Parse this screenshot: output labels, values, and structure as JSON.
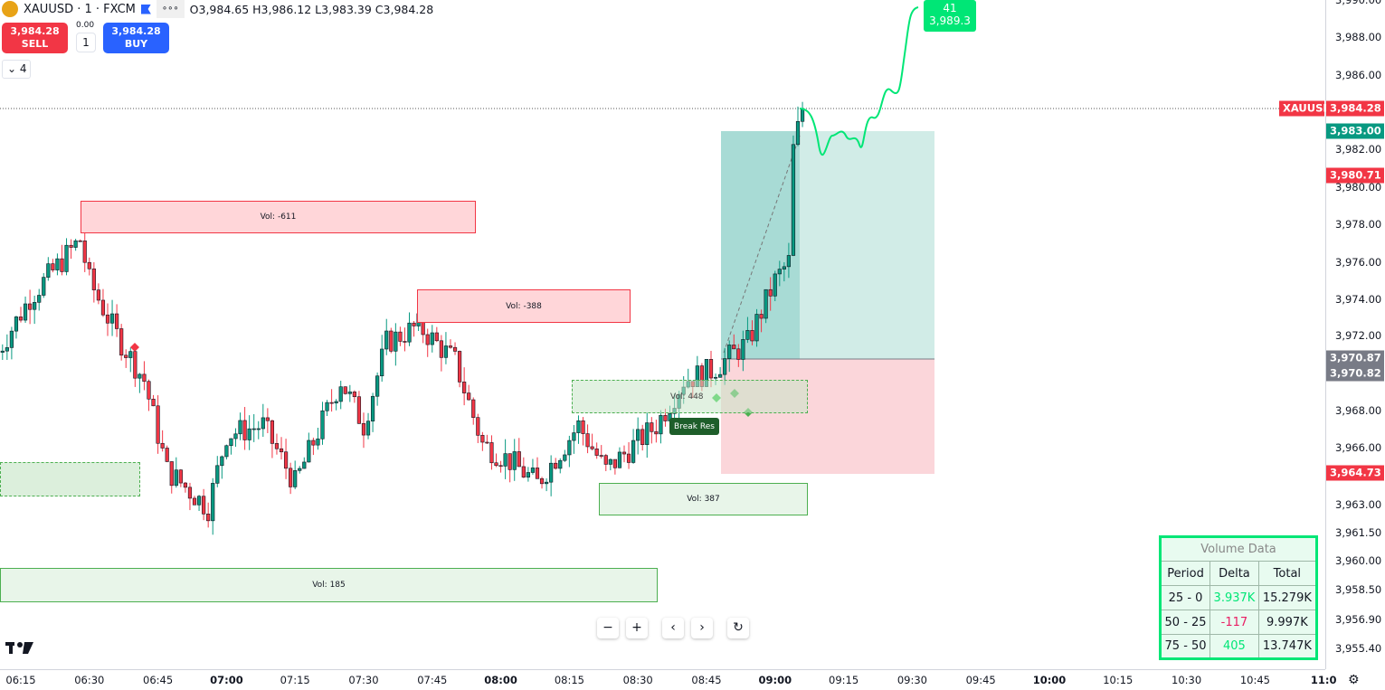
{
  "header": {
    "symbol": "XAUUSD · 1 · FXCM",
    "more": "∘∘∘",
    "ohlc": "O3,984.65  H3,986.12  L3,983.39  C3,984.28"
  },
  "trade": {
    "sell_price": "3,984.28",
    "sell_label": "SELL",
    "buy_price": "3,984.28",
    "buy_label": "BUY",
    "spread": "0.00",
    "quantity": "1"
  },
  "indicators_toggle": "4",
  "price_axis": {
    "ticks": [
      "3,990.00",
      "3,988.00",
      "3,986.00",
      "3,982.00",
      "3,980.00",
      "3,978.00",
      "3,976.00",
      "3,974.00",
      "3,972.00",
      "3,968.00",
      "3,966.00",
      "3,963.00",
      "3,961.50",
      "3,960.00",
      "3,958.50",
      "3,956.90",
      "3,955.40"
    ],
    "labels": {
      "symbol": "XAUUSD",
      "last": "3,984.28",
      "tp": "3,983.00",
      "entry_red": "3,980.71",
      "entry_a": "3,970.87",
      "entry_b": "3,970.82",
      "stop": "3,964.73"
    }
  },
  "time_axis": [
    "06:15",
    "06:30",
    "06:45",
    "07:00",
    "07:15",
    "07:30",
    "07:45",
    "08:00",
    "08:15",
    "08:30",
    "08:45",
    "09:00",
    "09:15",
    "09:30",
    "09:45",
    "10:00",
    "10:15",
    "10:30",
    "10:45",
    "11:0"
  ],
  "zones": {
    "z1": "Vol: -611",
    "z2": "Vol: -388",
    "z3": "Vol: 387",
    "z4": "Vol: 185",
    "z5": "Vol: 448",
    "break": "Break Res"
  },
  "projection": {
    "bars": "41",
    "price": "3,989.3"
  },
  "volume_table": {
    "title": "Volume Data",
    "headers": [
      "Period",
      "Delta",
      "Total"
    ],
    "rows": [
      [
        "25 - 0",
        "3.937K",
        "15.279K"
      ],
      [
        "50 - 25",
        "-117",
        "9.997K"
      ],
      [
        "75 - 50",
        "405",
        "13.747K"
      ]
    ]
  },
  "controls": {
    "zoom_out": "−",
    "zoom_in": "+",
    "back": "‹",
    "fwd": "›",
    "reset": "↻"
  },
  "colors": {
    "up": "#089981",
    "down": "#f23645",
    "accent": "#00e676",
    "buy": "#2962ff"
  },
  "chart_data": {
    "type": "candlestick",
    "approx_close_path": [
      [
        "06:10",
        3971.3
      ],
      [
        "06:17",
        3974.2
      ],
      [
        "06:28",
        3977.3
      ],
      [
        "06:30",
        3975.1
      ],
      [
        "06:36",
        3972.2
      ],
      [
        "06:42",
        3969.8
      ],
      [
        "06:47",
        3965
      ],
      [
        "06:56",
        3963
      ],
      [
        "07:00",
        3966.9
      ],
      [
        "07:08",
        3967.4
      ],
      [
        "07:15",
        3964.3
      ],
      [
        "07:25",
        3969.8
      ],
      [
        "07:30",
        3967.4
      ],
      [
        "07:35",
        3971.8
      ],
      [
        "07:42",
        3972.7
      ],
      [
        "07:50",
        3970.8
      ],
      [
        "07:56",
        3966.4
      ],
      [
        "08:02",
        3965.5
      ],
      [
        "08:08",
        3964.3
      ],
      [
        "08:17",
        3967.4
      ],
      [
        "08:23",
        3965
      ],
      [
        "08:34",
        3967.4
      ],
      [
        "08:40",
        3969.8
      ],
      [
        "08:46",
        3970.3
      ],
      [
        "08:54",
        3971.8
      ],
      [
        "09:00",
        3975.1
      ],
      [
        "09:03",
        3976.1
      ],
      [
        "09:04",
        3982.1
      ],
      [
        "09:06",
        3984.28
      ]
    ]
  }
}
